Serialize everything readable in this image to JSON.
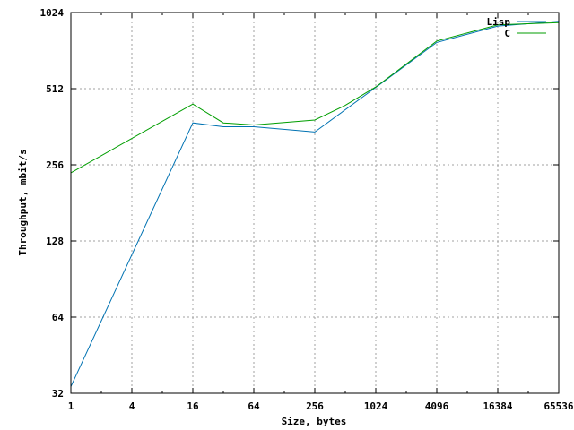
{
  "chart_data": {
    "type": "line",
    "xlabel": "Size, bytes",
    "ylabel": "Throughput, mbit/s",
    "xscale": "log2",
    "yscale": "log2",
    "xlim": [
      1,
      65536
    ],
    "ylim": [
      32,
      1024
    ],
    "x_ticks": [
      1,
      4,
      16,
      64,
      256,
      1024,
      4096,
      16384,
      65536
    ],
    "x_tick_labels": [
      "1",
      "4",
      "16",
      "64",
      "256",
      "1024",
      "4096",
      "16384",
      "65536"
    ],
    "y_ticks": [
      32,
      64,
      128,
      256,
      512,
      1024
    ],
    "y_tick_labels": [
      "32",
      "64",
      "128",
      "256",
      "512",
      "1024"
    ],
    "grid": true,
    "legend_position": "top-right",
    "series": [
      {
        "name": "Lisp",
        "color": "#0072b2",
        "x": [
          1,
          16,
          32,
          64,
          256,
          1024,
          4096,
          16384,
          65536
        ],
        "y": [
          34,
          375,
          362,
          362,
          345,
          518,
          780,
          905,
          945
        ]
      },
      {
        "name": "C",
        "color": "#009e00",
        "x": [
          1,
          16,
          32,
          64,
          256,
          512,
          1024,
          4096,
          16384,
          65536
        ],
        "y": [
          238,
          445,
          375,
          368,
          385,
          440,
          520,
          790,
          915,
          935
        ]
      }
    ]
  }
}
